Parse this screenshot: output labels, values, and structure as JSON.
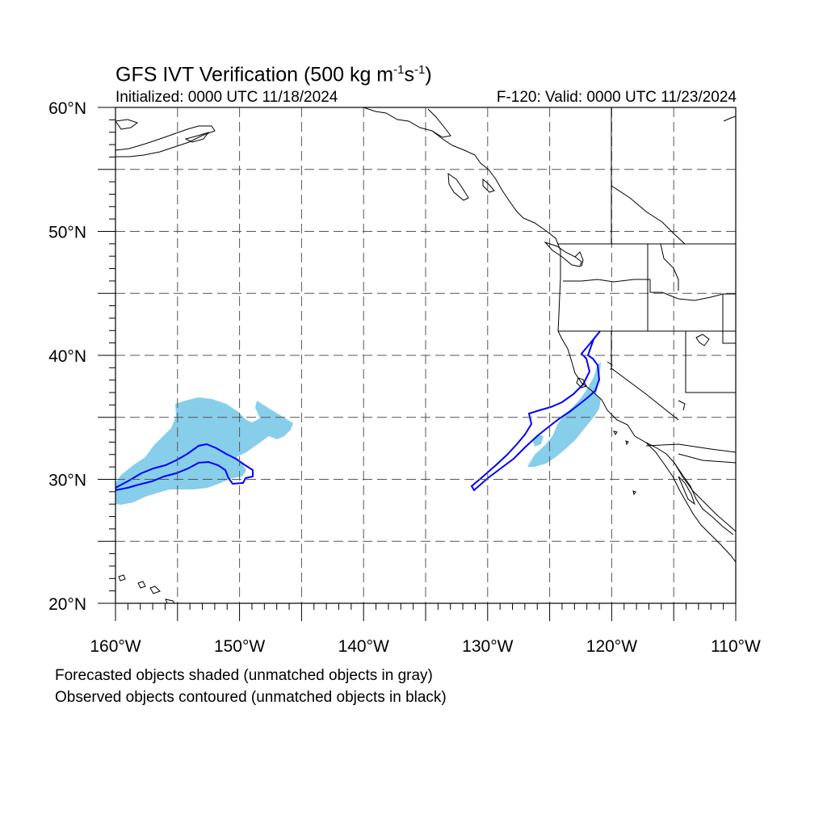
{
  "title": {
    "main": "GFS IVT Verification (500 kg m",
    "sup1": "-1",
    "mid": "s",
    "sup2": "-1",
    "end": ")"
  },
  "initialized": "Initialized: 0000 UTC 11/18/2024",
  "valid": "F-120: Valid: 0000 UTC 11/23/2024",
  "legend": {
    "line1": "Forecasted objects shaded (unmatched objects in gray)",
    "line2": "Observed objects contoured (unmatched objects in black)"
  },
  "map": {
    "lon_range": [
      -160,
      -110
    ],
    "lat_range": [
      20,
      60
    ],
    "lon_grid": [
      -155,
      -150,
      -145,
      -140,
      -135,
      -130,
      -125,
      -120,
      -115
    ],
    "lat_grid": [
      25,
      30,
      35,
      40,
      45,
      50,
      55
    ],
    "lat_labels": [
      {
        "lat": 60,
        "text": "60°N"
      },
      {
        "lat": 50,
        "text": "50°N"
      },
      {
        "lat": 40,
        "text": "40°N"
      },
      {
        "lat": 30,
        "text": "30°N"
      },
      {
        "lat": 20,
        "text": "20°N"
      }
    ],
    "lon_labels": [
      {
        "lon": -160,
        "text": "160°W"
      },
      {
        "lon": -150,
        "text": "150°W"
      },
      {
        "lon": -140,
        "text": "140°W"
      },
      {
        "lon": -130,
        "text": "130°W"
      },
      {
        "lon": -120,
        "text": "120°W"
      },
      {
        "lon": -110,
        "text": "110°W"
      }
    ],
    "colors": {
      "forecast_fill": "#87ceeb",
      "observed_contour": "#0000ff",
      "coastline": "#000000",
      "grid": "#555555"
    }
  }
}
